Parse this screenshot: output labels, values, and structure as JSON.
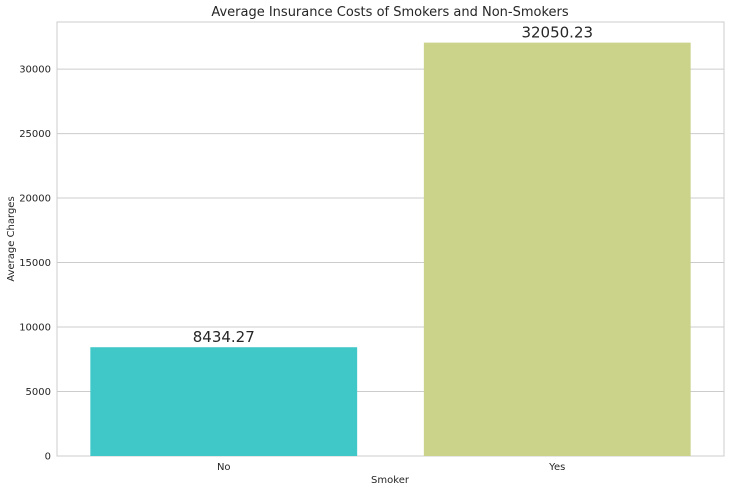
{
  "chart_data": {
    "type": "bar",
    "title": "Average Insurance Costs of Smokers and Non-Smokers",
    "xlabel": "Smoker",
    "ylabel": "Average Charges",
    "categories": [
      "No",
      "Yes"
    ],
    "values": [
      8434.27,
      32050.23
    ],
    "data_labels": [
      "8434.27",
      "32050.23"
    ],
    "colors": [
      "#40c8c8",
      "#cbd28a"
    ],
    "ylim": [
      0,
      33650
    ],
    "yticks": [
      0,
      5000,
      10000,
      15000,
      20000,
      25000,
      30000
    ],
    "ytick_labels": [
      "0",
      "5000",
      "10000",
      "15000",
      "20000",
      "25000",
      "30000"
    ],
    "grid": true,
    "style": "whitegrid"
  }
}
